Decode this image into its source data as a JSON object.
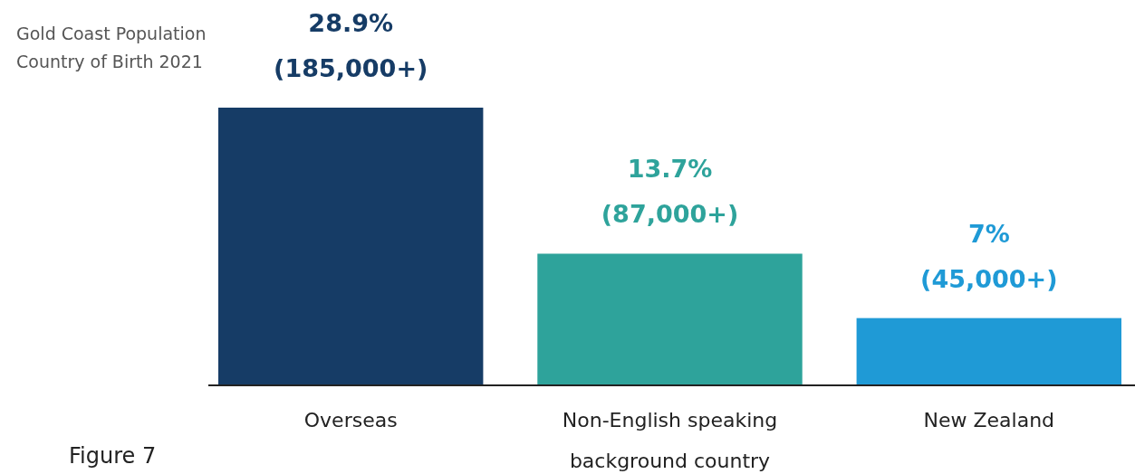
{
  "chart_data": {
    "type": "bar",
    "title": "Gold Coast Population Country of Birth 2021",
    "categories": [
      "Overseas",
      "Non-English speaking background country",
      "New Zealand"
    ],
    "values": [
      28.9,
      13.7,
      7
    ],
    "colors": [
      "#163c66",
      "#2ea39b",
      "#1f9ad6"
    ],
    "value_labels": [
      "28.9%",
      "13.7%",
      "7%"
    ],
    "annotations": [
      {
        "text": "(185,000+)",
        "x": "Overseas",
        "y": 28.9
      },
      {
        "text": "(87,000+)",
        "x": "Non-English speaking background country",
        "y": 13.7
      },
      {
        "text": "(45,000+)",
        "x": "New Zealand",
        "y": 7
      },
      "Figure 7"
    ],
    "grid": false
  }
}
